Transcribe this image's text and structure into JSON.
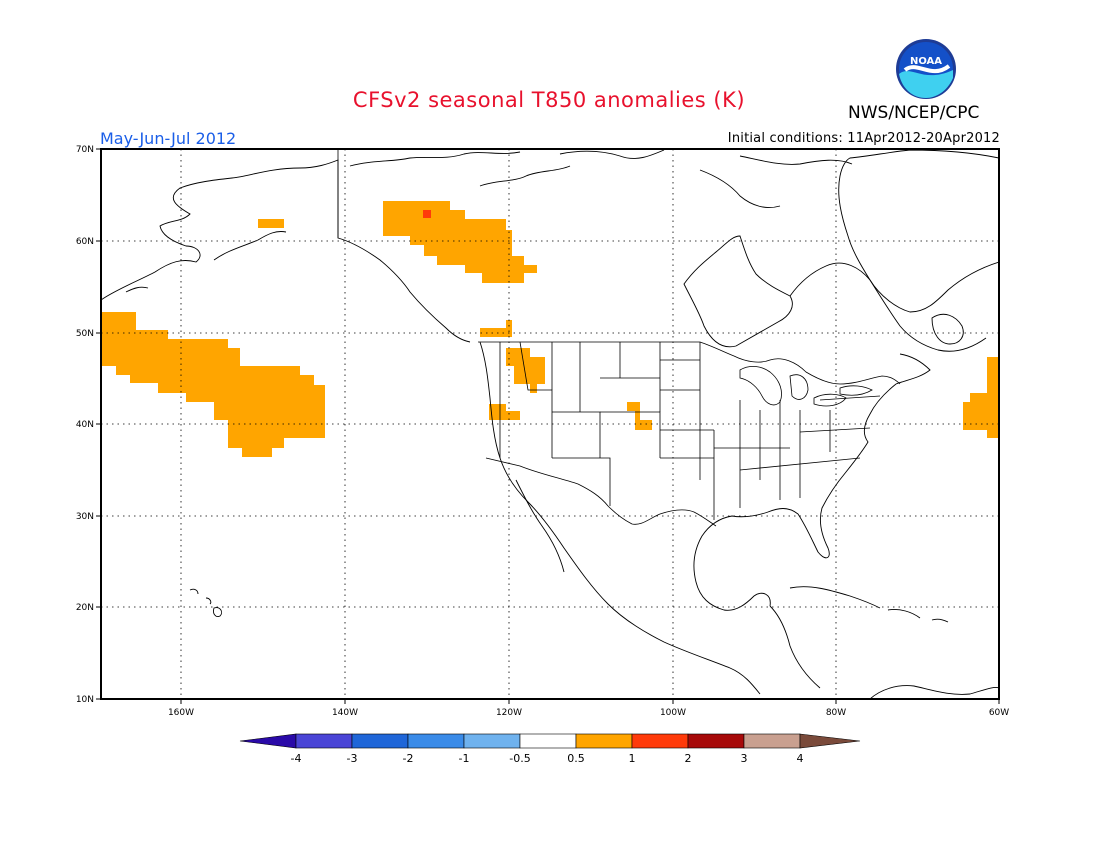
{
  "header": {
    "title": "CFSv2 seasonal T850 anomalies (K)",
    "agency": "NWS/NCEP/CPC",
    "logo_text": "NOAA",
    "period": "May-Jun-Jul 2012",
    "initial_conditions": "Initial conditions: 11Apr2012-20Apr2012"
  },
  "map": {
    "lon_range": [
      -172,
      -60
    ],
    "lat_range": [
      10,
      70
    ],
    "grid": true,
    "lat_labels": [
      "10N",
      "20N",
      "30N",
      "40N",
      "50N",
      "60N",
      "70N"
    ],
    "lon_labels": [
      "160W",
      "140W",
      "120W",
      "100W",
      "80W",
      "60W"
    ],
    "anomaly_regions": [
      {
        "name": "alaska-small",
        "value_bin": "0.5 to 1"
      },
      {
        "name": "yukon-nwt",
        "value_bin": "0.5 to 1"
      },
      {
        "name": "yukon-nwt-peak",
        "value_bin": "1 to 2"
      },
      {
        "name": "north-pacific",
        "value_bin": "0.5 to 1"
      },
      {
        "name": "pacific-northwest",
        "value_bin": "0.5 to 1"
      },
      {
        "name": "idaho-montana",
        "value_bin": "0.5 to 1"
      },
      {
        "name": "northern-california-nevada",
        "value_bin": "0.5 to 1"
      },
      {
        "name": "colorado",
        "value_bin": "0.5 to 1"
      },
      {
        "name": "nova-scotia-atlantic",
        "value_bin": "0.5 to 1"
      }
    ]
  },
  "colorbar": {
    "labels": [
      "-4",
      "-3",
      "-2",
      "-1",
      "-0.5",
      "0.5",
      "1",
      "2",
      "3",
      "4"
    ],
    "colors": [
      "#2a0aa8",
      "#4a45d6",
      "#1f66d8",
      "#3a8be8",
      "#6fb2ee",
      "#ffffff",
      "#ffa500",
      "#ff3a0a",
      "#a70a0a",
      "#c9a090",
      "#7a4a3a"
    ]
  },
  "colors": {
    "title": "#e8112d",
    "period": "#1a5ee8",
    "anomaly_weak_warm": "#ffa500",
    "anomaly_mod_warm": "#ff3a0a"
  }
}
